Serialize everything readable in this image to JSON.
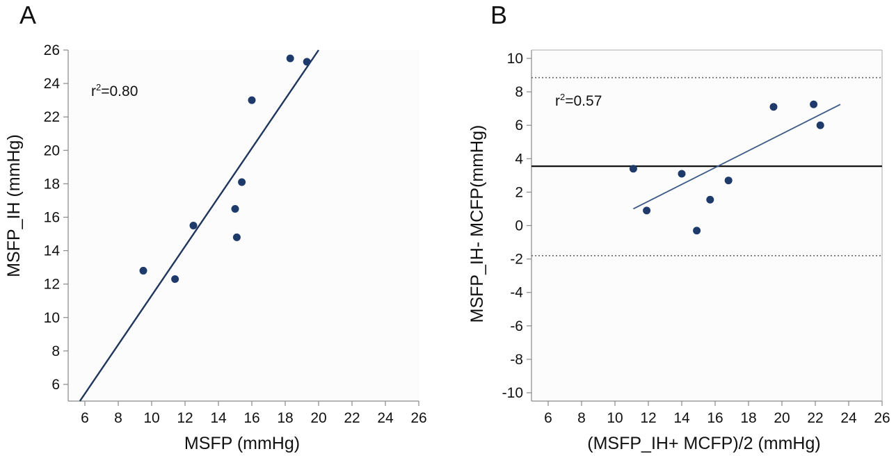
{
  "chart_data": [
    {
      "panel": "A",
      "type": "scatter",
      "xlabel": "MSFP (mmHg)",
      "ylabel": "MSFP_IH (mmHg)",
      "xlim": [
        5,
        26
      ],
      "ylim": [
        5,
        26
      ],
      "xticks": [
        6,
        8,
        10,
        12,
        14,
        16,
        18,
        20,
        22,
        24,
        26
      ],
      "yticks": [
        6,
        8,
        10,
        12,
        14,
        16,
        18,
        20,
        22,
        24,
        26
      ],
      "annotation": "r²=0.80",
      "points": [
        {
          "x": 9.5,
          "y": 12.8
        },
        {
          "x": 11.4,
          "y": 12.3
        },
        {
          "x": 12.5,
          "y": 15.5
        },
        {
          "x": 15.0,
          "y": 16.5
        },
        {
          "x": 15.1,
          "y": 14.8
        },
        {
          "x": 15.4,
          "y": 18.1
        },
        {
          "x": 16.0,
          "y": 23.0
        },
        {
          "x": 18.3,
          "y": 25.5
        },
        {
          "x": 19.3,
          "y": 25.3
        }
      ],
      "fit_line": [
        {
          "x": 5.7,
          "y": 5.0
        },
        {
          "x": 20.0,
          "y": 26.0
        }
      ],
      "grid": false
    },
    {
      "panel": "B",
      "type": "scatter",
      "xlabel": "(MSFP_IH+ MCFP)/2 (mmHg)",
      "ylabel": "MSFP_IH- MCFP(mmHg)",
      "xlim": [
        5,
        26
      ],
      "ylim": [
        -10.5,
        10.5
      ],
      "xticks": [
        6,
        8,
        10,
        12,
        14,
        16,
        18,
        20,
        22,
        24,
        26
      ],
      "yticks": [
        10,
        8,
        6,
        4,
        2,
        0,
        -2,
        -4,
        -6,
        -8,
        -10
      ],
      "annotation": "r²=0.57",
      "points": [
        {
          "x": 11.1,
          "y": 3.4
        },
        {
          "x": 11.9,
          "y": 0.9
        },
        {
          "x": 14.0,
          "y": 3.1
        },
        {
          "x": 14.9,
          "y": -0.3
        },
        {
          "x": 15.7,
          "y": 1.55
        },
        {
          "x": 16.8,
          "y": 2.7
        },
        {
          "x": 19.5,
          "y": 7.1
        },
        {
          "x": 21.9,
          "y": 7.25
        },
        {
          "x": 22.3,
          "y": 6.0
        }
      ],
      "fit_line": [
        {
          "x": 11.1,
          "y": 1.0
        },
        {
          "x": 23.5,
          "y": 7.25
        }
      ],
      "mean_line": 3.55,
      "limits_of_agreement": [
        8.85,
        -1.8
      ],
      "grid": false
    }
  ]
}
